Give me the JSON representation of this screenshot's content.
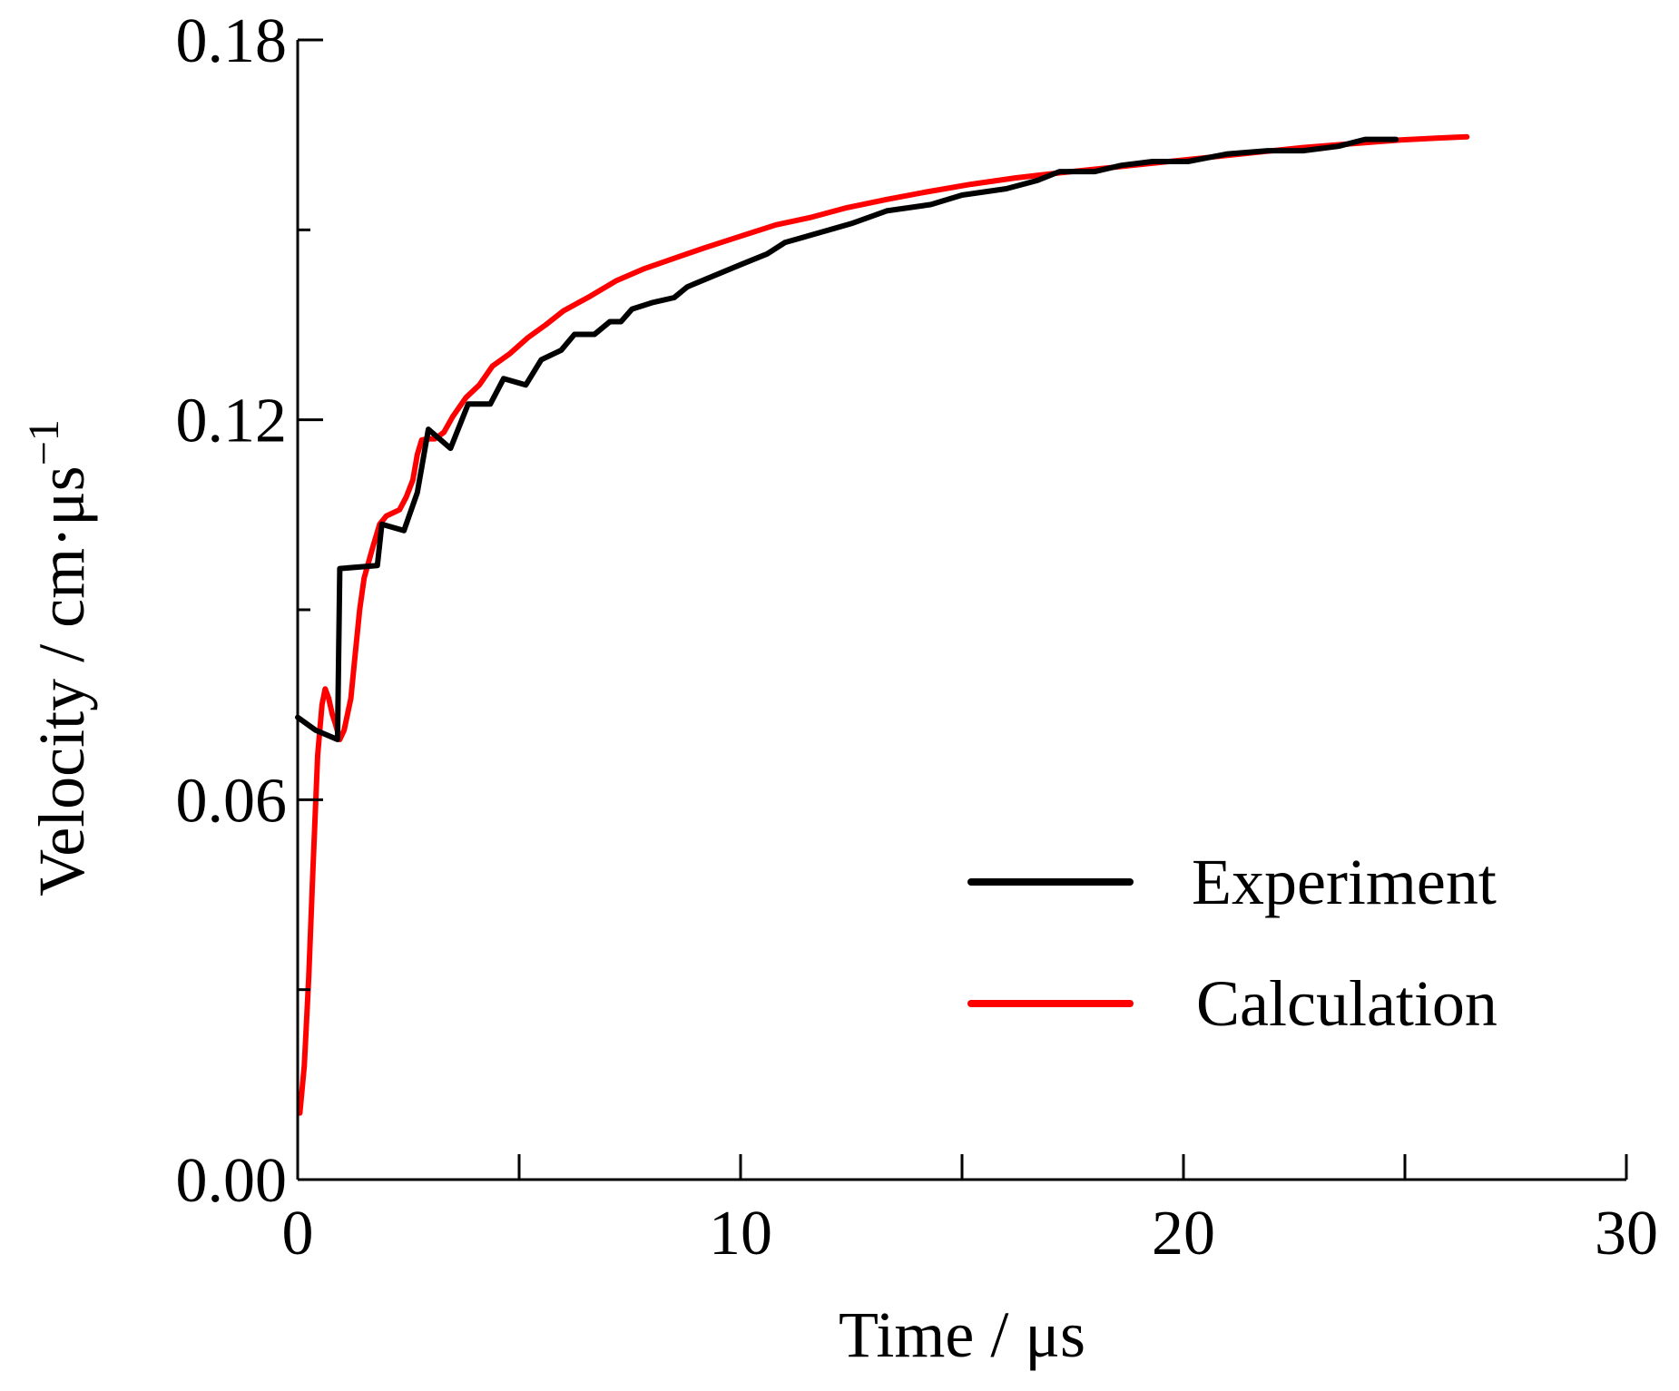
{
  "chart_data": {
    "type": "line",
    "title": "",
    "xlabel": "Time / μs",
    "ylabel": "Velocity / cm·μs",
    "ylabel_superscript": "−1",
    "xlim": [
      0,
      30
    ],
    "ylim": [
      0,
      0.18
    ],
    "x_ticks": [
      0,
      10,
      20,
      30
    ],
    "x_tick_labels": [
      "0",
      "10",
      "20",
      "30"
    ],
    "x_minor_ticks": [
      5,
      15,
      25
    ],
    "y_ticks": [
      0,
      0.06,
      0.12,
      0.18
    ],
    "y_tick_labels": [
      "0.00",
      "0.06",
      "0.12",
      "0.18"
    ],
    "y_minor_ticks": [
      0.03,
      0.09,
      0.15
    ],
    "grid": false,
    "legend_position": "bottom-right",
    "series": [
      {
        "name": "Experiment",
        "color": "#000000",
        "points": [
          [
            0,
            0.073
          ],
          [
            0.4,
            0.071
          ],
          [
            0.9,
            0.0695
          ],
          [
            0.95,
            0.0965
          ],
          [
            1.8,
            0.097
          ],
          [
            1.9,
            0.1035
          ],
          [
            2.4,
            0.1025
          ],
          [
            2.7,
            0.1085
          ],
          [
            2.95,
            0.1185
          ],
          [
            3.45,
            0.1155
          ],
          [
            3.85,
            0.1225
          ],
          [
            4.35,
            0.1225
          ],
          [
            4.65,
            0.1265
          ],
          [
            5.15,
            0.1255
          ],
          [
            5.5,
            0.1295
          ],
          [
            5.95,
            0.131
          ],
          [
            6.25,
            0.1335
          ],
          [
            6.7,
            0.1335
          ],
          [
            7.05,
            0.1355
          ],
          [
            7.3,
            0.1355
          ],
          [
            7.55,
            0.1375
          ],
          [
            8.0,
            0.1385
          ],
          [
            8.5,
            0.1393
          ],
          [
            8.8,
            0.141
          ],
          [
            10.0,
            0.1445
          ],
          [
            10.6,
            0.1462
          ],
          [
            11.0,
            0.148
          ],
          [
            12.5,
            0.151
          ],
          [
            13.3,
            0.153
          ],
          [
            14.3,
            0.154
          ],
          [
            15.0,
            0.1555
          ],
          [
            16.0,
            0.1565
          ],
          [
            16.7,
            0.1578
          ],
          [
            17.2,
            0.1592
          ],
          [
            18.0,
            0.1592
          ],
          [
            18.6,
            0.1602
          ],
          [
            19.3,
            0.1608
          ],
          [
            20.1,
            0.1608
          ],
          [
            21.0,
            0.162
          ],
          [
            21.9,
            0.1625
          ],
          [
            22.7,
            0.1625
          ],
          [
            23.5,
            0.1632
          ],
          [
            24.1,
            0.1643
          ],
          [
            24.8,
            0.1643
          ]
        ]
      },
      {
        "name": "Calculation",
        "color": "#ff0000",
        "points": [
          [
            0.05,
            0.0105
          ],
          [
            0.15,
            0.018
          ],
          [
            0.25,
            0.032
          ],
          [
            0.35,
            0.05
          ],
          [
            0.45,
            0.067
          ],
          [
            0.55,
            0.075
          ],
          [
            0.62,
            0.0775
          ],
          [
            0.7,
            0.076
          ],
          [
            0.78,
            0.0735
          ],
          [
            0.85,
            0.072
          ],
          [
            0.95,
            0.0695
          ],
          [
            1.05,
            0.071
          ],
          [
            1.2,
            0.076
          ],
          [
            1.3,
            0.083
          ],
          [
            1.4,
            0.09
          ],
          [
            1.5,
            0.095
          ],
          [
            1.7,
            0.1
          ],
          [
            1.85,
            0.1035
          ],
          [
            2.0,
            0.1048
          ],
          [
            2.3,
            0.1058
          ],
          [
            2.45,
            0.1078
          ],
          [
            2.6,
            0.1105
          ],
          [
            2.7,
            0.1145
          ],
          [
            2.8,
            0.1168
          ],
          [
            2.95,
            0.117
          ],
          [
            3.1,
            0.117
          ],
          [
            3.3,
            0.118
          ],
          [
            3.5,
            0.1205
          ],
          [
            3.8,
            0.1235
          ],
          [
            4.1,
            0.1255
          ],
          [
            4.4,
            0.1285
          ],
          [
            4.8,
            0.1305
          ],
          [
            5.2,
            0.133
          ],
          [
            5.6,
            0.135
          ],
          [
            6.0,
            0.1372
          ],
          [
            6.6,
            0.1395
          ],
          [
            7.2,
            0.142
          ],
          [
            7.8,
            0.1438
          ],
          [
            8.5,
            0.1455
          ],
          [
            9.2,
            0.1472
          ],
          [
            10.0,
            0.149
          ],
          [
            10.8,
            0.1508
          ],
          [
            11.6,
            0.152
          ],
          [
            12.4,
            0.1535
          ],
          [
            13.3,
            0.1548
          ],
          [
            14.2,
            0.156
          ],
          [
            15.2,
            0.1572
          ],
          [
            16.2,
            0.1582
          ],
          [
            17.2,
            0.159
          ],
          [
            18.3,
            0.1598
          ],
          [
            19.4,
            0.1606
          ],
          [
            20.5,
            0.1614
          ],
          [
            21.6,
            0.1622
          ],
          [
            22.7,
            0.163
          ],
          [
            23.8,
            0.1636
          ],
          [
            24.9,
            0.1642
          ],
          [
            25.7,
            0.1645
          ],
          [
            26.4,
            0.1647
          ]
        ]
      }
    ]
  }
}
